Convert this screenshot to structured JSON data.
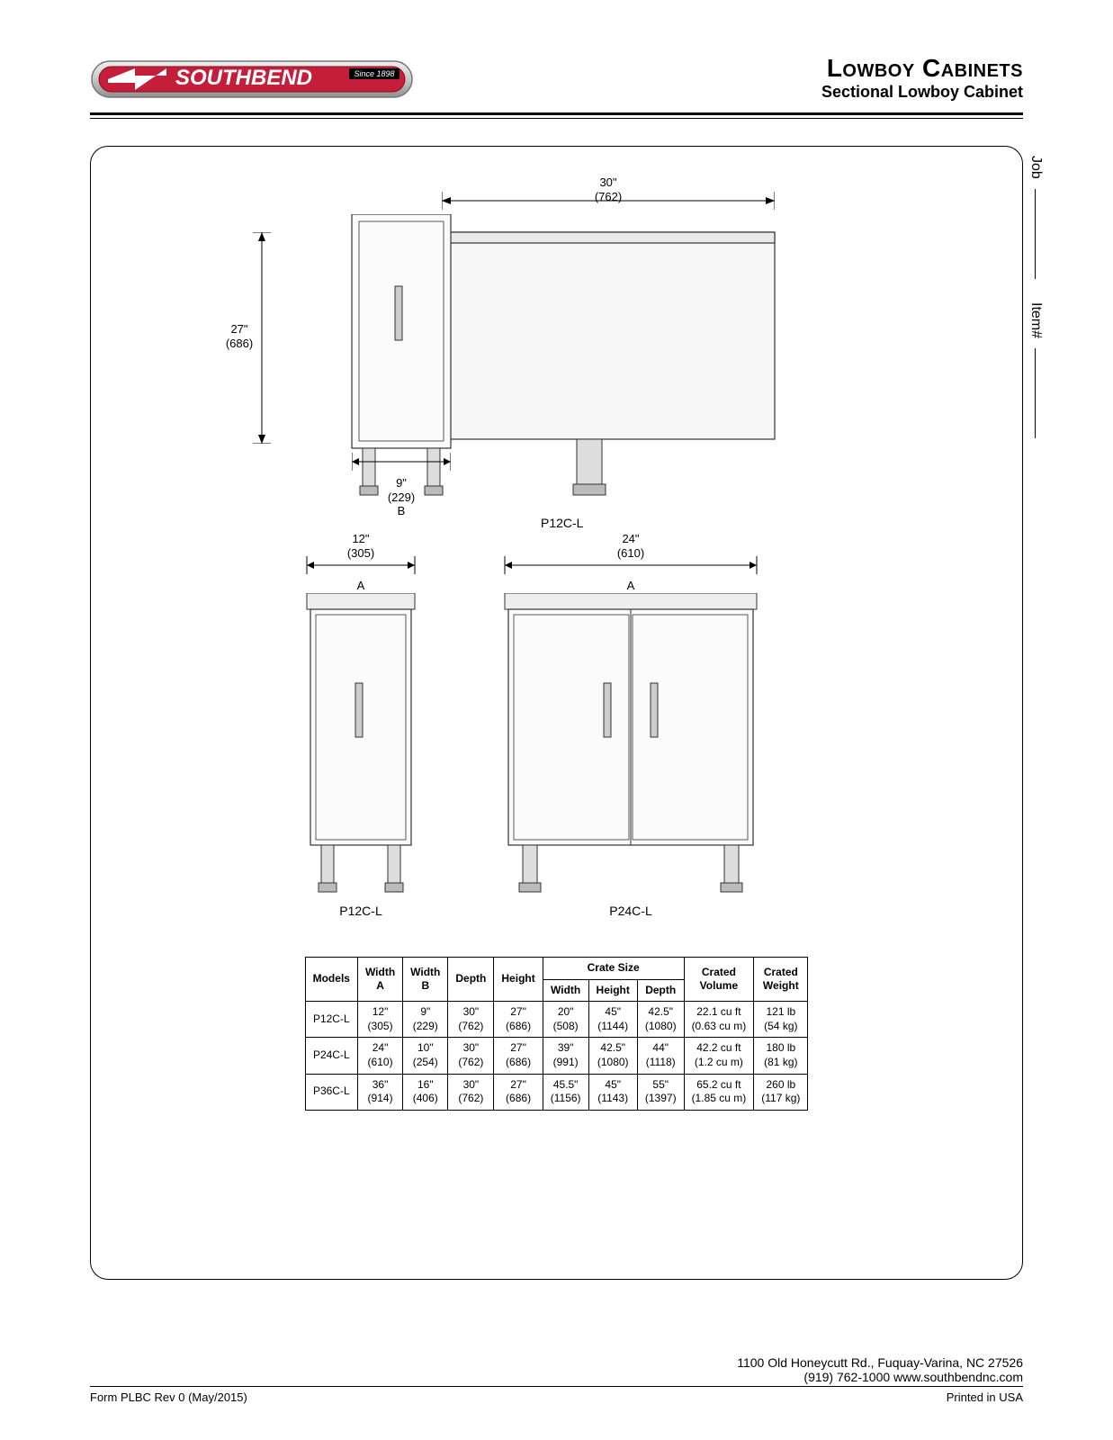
{
  "header": {
    "brand": "SOUTHBEND",
    "since": "Since 1898",
    "title1": "Lowboy Cabinets",
    "title2": "Sectional Lowboy Cabinet"
  },
  "side": {
    "job": "Job",
    "item": "Item#"
  },
  "drawings": {
    "top": {
      "depth_in": "30\"",
      "depth_mm": "(762)",
      "height_in": "27\"",
      "height_mm": "(686)",
      "widthB_in": "9\"",
      "widthB_mm": "(229)",
      "widthB_label": "B",
      "model": "P12C-L"
    },
    "left": {
      "width_in": "12\"",
      "width_mm": "(305)",
      "width_label": "A",
      "model": "P12C-L"
    },
    "right": {
      "width_in": "24\"",
      "width_mm": "(610)",
      "width_label": "A",
      "model": "P24C-L"
    }
  },
  "table": {
    "headers": {
      "models": "Models",
      "widthA": "Width\nA",
      "widthB": "Width\nB",
      "depth": "Depth",
      "height": "Height",
      "crate": "Crate Size",
      "crate_w": "Width",
      "crate_h": "Height",
      "crate_d": "Depth",
      "volume": "Crated\nVolume",
      "weight": "Crated\nWeight"
    },
    "rows": [
      {
        "model": "P12C-L",
        "widthA": "12\"\n(305)",
        "widthB": "9\"\n(229)",
        "depth": "30\"\n(762)",
        "height": "27\"\n(686)",
        "cw": "20\"\n(508)",
        "ch": "45\"\n(1144)",
        "cd": "42.5\"\n(1080)",
        "vol": "22.1 cu ft\n(0.63 cu m)",
        "wt": "121 lb\n(54 kg)"
      },
      {
        "model": "P24C-L",
        "widthA": "24\"\n(610)",
        "widthB": "10\"\n(254)",
        "depth": "30\"\n(762)",
        "height": "27\"\n(686)",
        "cw": "39\"\n(991)",
        "ch": "42.5\"\n(1080)",
        "cd": "44\"\n(1118)",
        "vol": "42.2 cu ft\n(1.2 cu m)",
        "wt": "180 lb\n(81 kg)"
      },
      {
        "model": "P36C-L",
        "widthA": "36\"\n(914)",
        "widthB": "16\"\n(406)",
        "depth": "30\"\n(762)",
        "height": "27\"\n(686)",
        "cw": "45.5\"\n(1156)",
        "ch": "45\"\n(1143)",
        "cd": "55\"\n(1397)",
        "vol": "65.2 cu ft\n(1.85 cu m)",
        "wt": "260 lb\n(117 kg)"
      }
    ]
  },
  "footer": {
    "address": "1100 Old Honeycutt Rd., Fuquay-Varina, NC 27526",
    "contact": "(919) 762-1000   www.southbendnc.com",
    "form": "Form PLBC Rev 0 (May/2015)",
    "printed": "Printed in USA"
  },
  "colors": {
    "logo_red": "#c41e3a",
    "logo_silver_light": "#e8e8e8",
    "logo_silver_dark": "#a0a0a0",
    "cabinet_fill": "#f5f5f5",
    "cabinet_stroke": "#333333",
    "line": "#000000"
  }
}
